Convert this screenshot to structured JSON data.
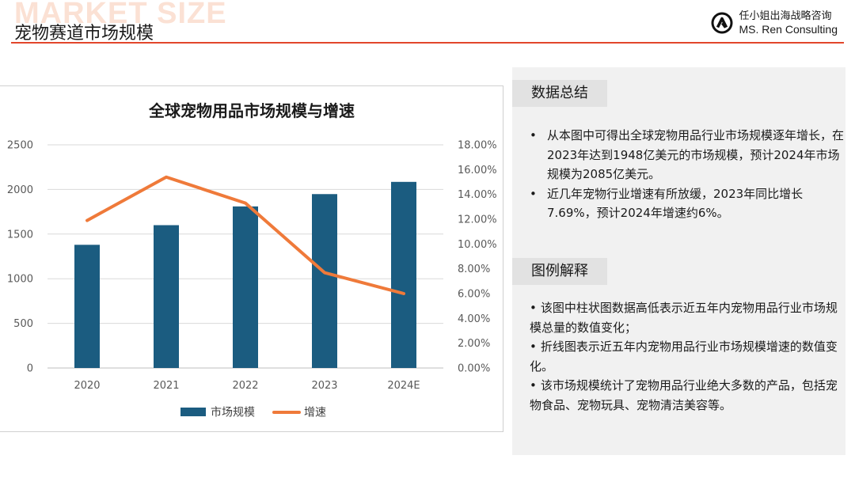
{
  "header": {
    "watermark": "MARKET SIZE",
    "title": "宠物赛道市场规模",
    "brand_cn": "任小姐出海战略咨询",
    "brand_en": "MS. Ren Consulting",
    "accent_color": "#e2462b"
  },
  "chart_data": {
    "type": "bar",
    "title": "全球宠物用品市场规模与增速",
    "categories": [
      "2020",
      "2021",
      "2022",
      "2023",
      "2024E"
    ],
    "series": [
      {
        "name": "市场规模",
        "type": "bar",
        "axis": "left",
        "color": "#1b5c80",
        "values": [
          1380,
          1600,
          1810,
          1948,
          2085
        ]
      },
      {
        "name": "增速",
        "type": "line",
        "axis": "right",
        "color": "#ef7a3a",
        "values": [
          11.9,
          15.4,
          13.3,
          7.69,
          6.0
        ]
      }
    ],
    "left_axis": {
      "ylim": [
        0,
        2500
      ],
      "ticks": [
        "0",
        "500",
        "1000",
        "1500",
        "2000",
        "2500"
      ]
    },
    "right_axis": {
      "ylim": [
        0,
        18
      ],
      "ticks": [
        "0.00%",
        "2.00%",
        "4.00%",
        "6.00%",
        "8.00%",
        "10.00%",
        "12.00%",
        "14.00%",
        "16.00%",
        "18.00%"
      ]
    },
    "grid": true,
    "legend_position": "bottom"
  },
  "panel": {
    "section1_title": "数据总结",
    "section1_bullets": [
      "从本图中可得出全球宠物用品行业市场规模逐年增长，在2023年达到1948亿美元的市场规模，预计2024年市场规模为2085亿美元。",
      "近几年宠物行业增速有所放缓，2023年同比增长7.69%，预计2024年增速约6%。"
    ],
    "section2_title": "图例解释",
    "section2_bullets": [
      "该图中柱状图数据高低表示近五年内宠物用品行业市场规模总量的数值变化；",
      "折线图表示近五年内宠物用品行业市场规模增速的数值变化。",
      "该市场规模统计了宠物用品行业绝大多数的产品，包括宠物食品、宠物玩具、宠物清洁美容等。"
    ],
    "bullet_symbol": "•"
  }
}
